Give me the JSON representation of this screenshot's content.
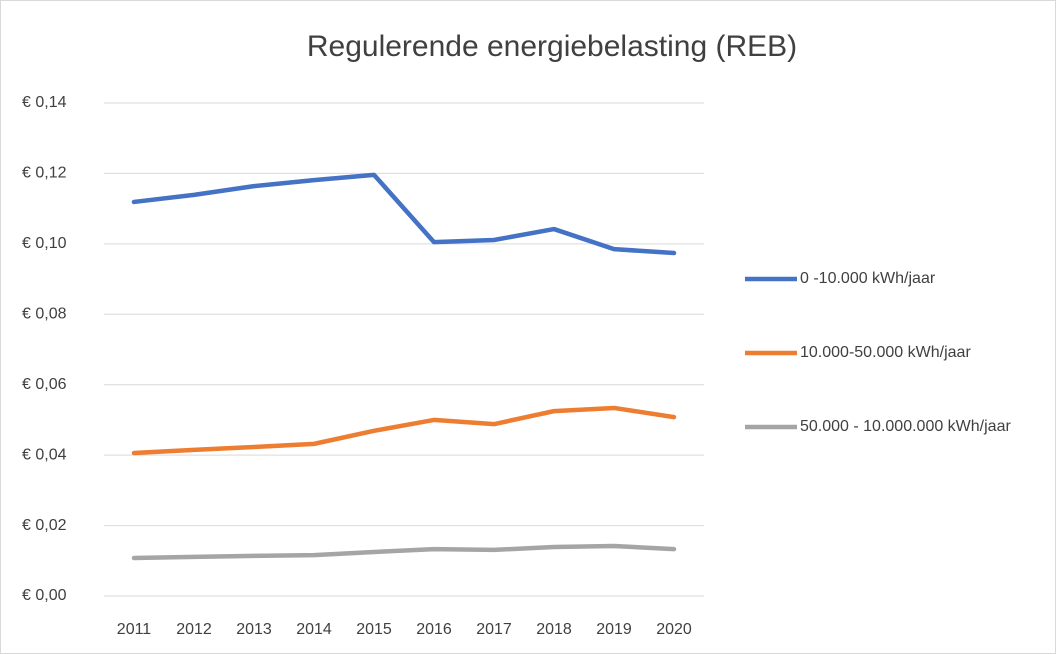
{
  "chart_data": {
    "type": "line",
    "title": "Regulerende energiebelasting (REB)",
    "categories": [
      "2011",
      "2012",
      "2013",
      "2014",
      "2015",
      "2016",
      "2017",
      "2018",
      "2019",
      "2020"
    ],
    "series": [
      {
        "name": "0 -10.000 kWh/jaar",
        "color": "#4472c4",
        "values": [
          0.1119,
          0.1139,
          0.1164,
          0.1181,
          0.1196,
          0.1005,
          0.1011,
          0.1042,
          0.0985,
          0.0974
        ]
      },
      {
        "name": "10.000-50.000 kWh/jaar",
        "color": "#ed7d31",
        "values": [
          0.0406,
          0.0415,
          0.0423,
          0.0432,
          0.0469,
          0.05,
          0.0488,
          0.0525,
          0.0534,
          0.0508
        ]
      },
      {
        "name": "50.000 - 10.000.000 kWh/jaar",
        "color": "#a5a5a5",
        "values": [
          0.0108,
          0.0111,
          0.0114,
          0.0116,
          0.0125,
          0.0133,
          0.0131,
          0.0139,
          0.0142,
          0.0133
        ]
      }
    ],
    "ylim": [
      0,
      0.14
    ],
    "yticks": [
      {
        "value": 0,
        "label": "€ 0,00"
      },
      {
        "value": 0.02,
        "label": "€ 0,02"
      },
      {
        "value": 0.04,
        "label": "€ 0,04"
      },
      {
        "value": 0.06,
        "label": "€ 0,06"
      },
      {
        "value": 0.08,
        "label": "€ 0,08"
      },
      {
        "value": 0.1,
        "label": "€ 0,10"
      },
      {
        "value": 0.12,
        "label": "€ 0,12"
      },
      {
        "value": 0.14,
        "label": "€ 0,14"
      }
    ],
    "grid": true,
    "legend": "right"
  }
}
